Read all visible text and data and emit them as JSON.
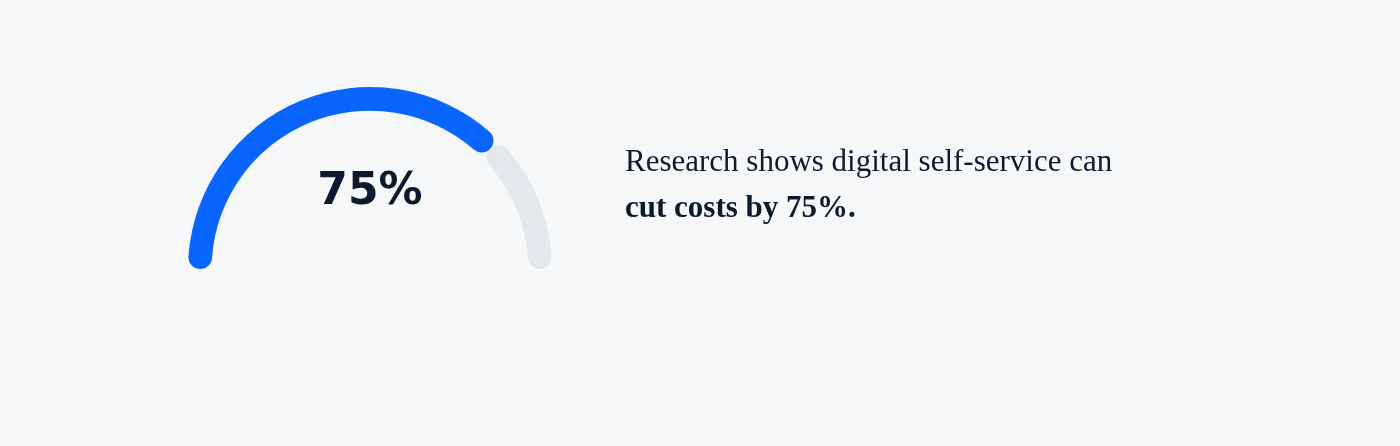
{
  "chart_data": {
    "type": "donut",
    "categories": [
      null,
      null
    ],
    "values": [
      75,
      25
    ],
    "colors": [
      "#0866ff",
      "#e3e8ee"
    ],
    "value_labels": [
      "75%",
      null
    ],
    "annotations": [
      "Research shows digital self-service can",
      "cut costs by 75%."
    ]
  }
}
